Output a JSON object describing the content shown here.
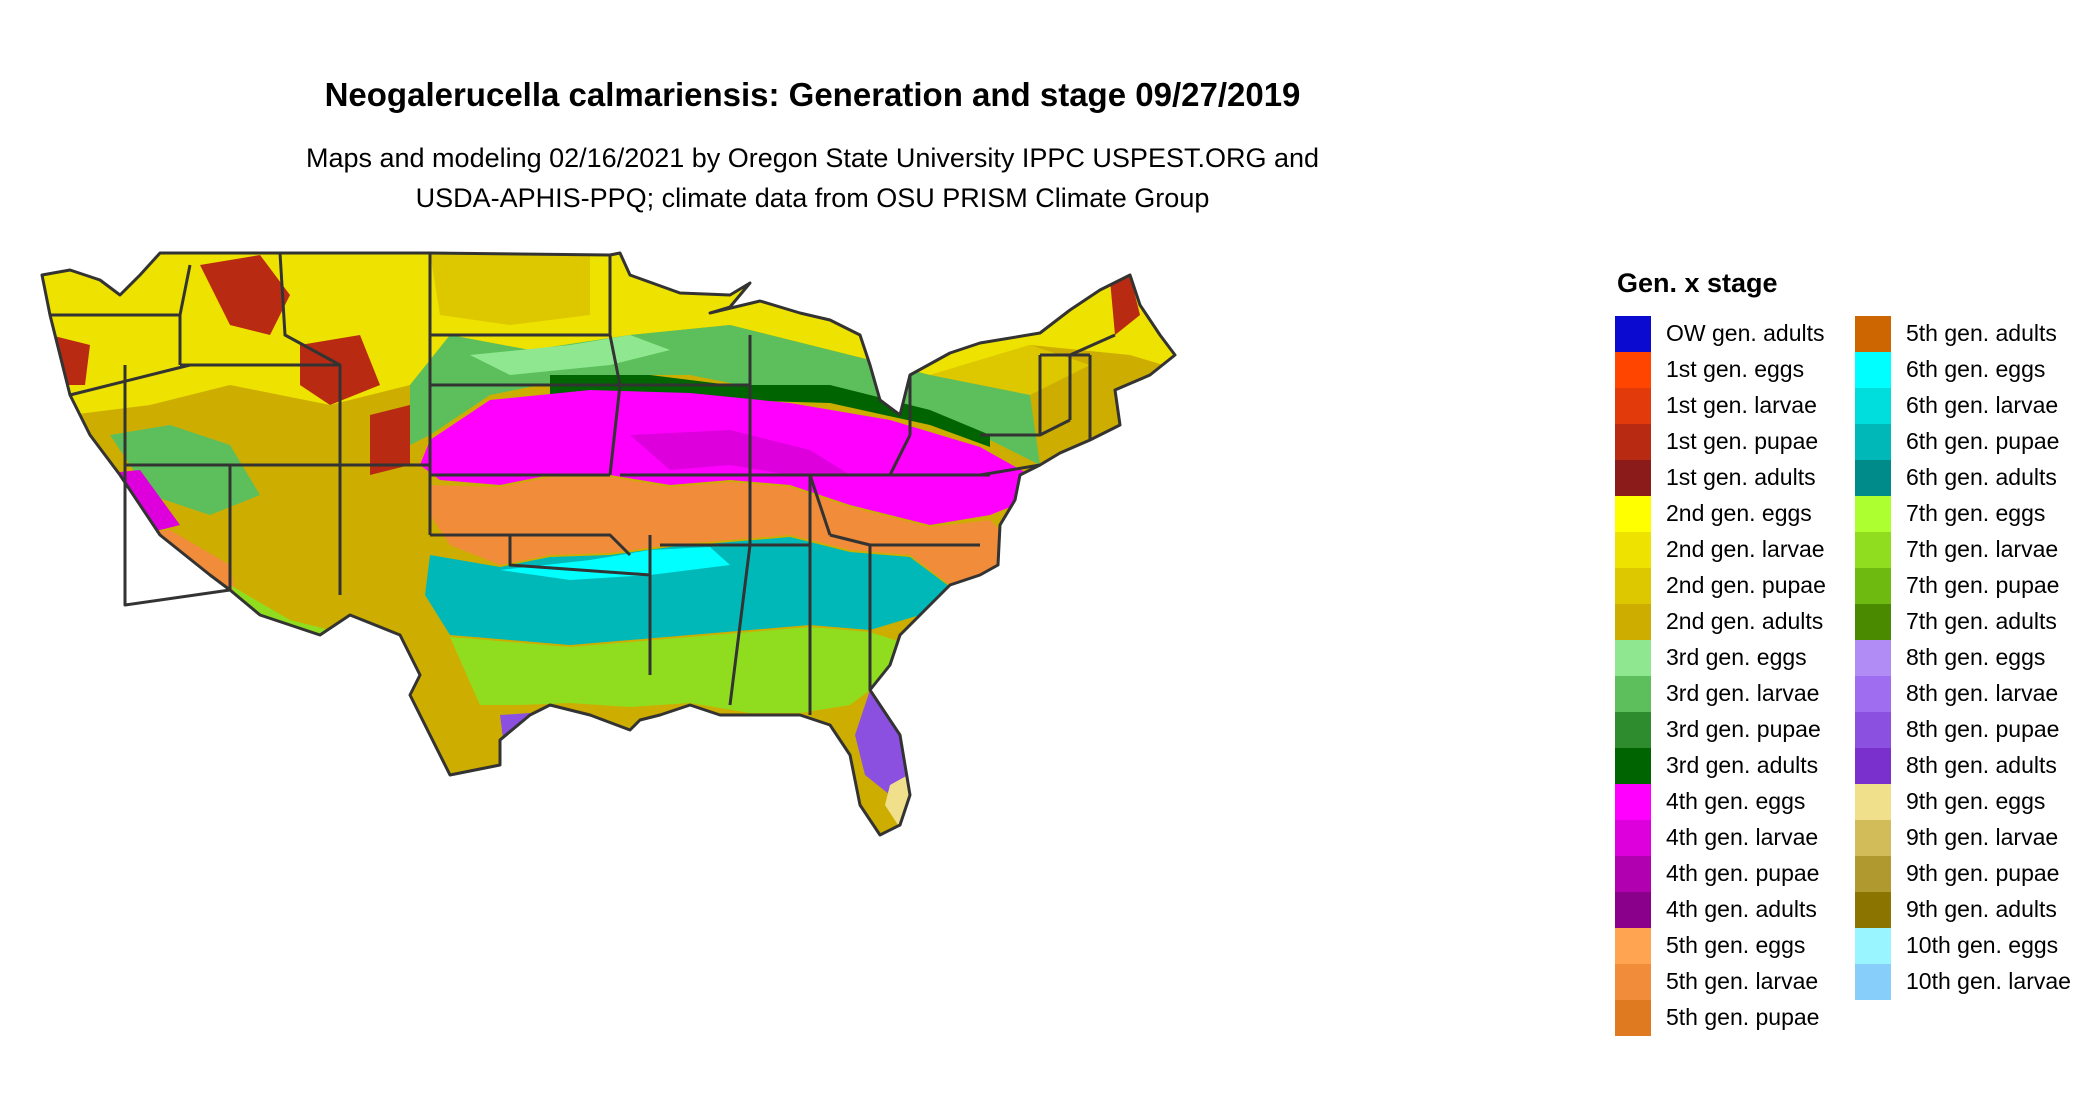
{
  "title": "Neogalerucella calmariensis: Generation and stage 09/27/2019",
  "subtitle_line1": "Maps and modeling 02/16/2021 by Oregon State University IPPC USPEST.ORG and",
  "subtitle_line2": "USDA-APHIS-PPQ; climate data from OSU PRISM Climate Group",
  "legend": {
    "title": "Gen. x stage",
    "items": [
      {
        "label": "OW gen. adults",
        "color": "#0a0ad0"
      },
      {
        "label": "1st gen. eggs",
        "color": "#ff4500"
      },
      {
        "label": "1st gen. larvae",
        "color": "#e23a0a"
      },
      {
        "label": "1st gen. pupae",
        "color": "#b82a12"
      },
      {
        "label": "1st gen. adults",
        "color": "#8b1a1a"
      },
      {
        "label": "2nd gen. eggs",
        "color": "#ffff00"
      },
      {
        "label": "2nd gen. larvae",
        "color": "#eee200"
      },
      {
        "label": "2nd gen. pupae",
        "color": "#ddc800"
      },
      {
        "label": "2nd gen. adults",
        "color": "#cdae00"
      },
      {
        "label": "3rd gen. eggs",
        "color": "#8fe88f"
      },
      {
        "label": "3rd gen. larvae",
        "color": "#5cbf5c"
      },
      {
        "label": "3rd gen. pupae",
        "color": "#2e8b2e"
      },
      {
        "label": "3rd gen. adults",
        "color": "#006400"
      },
      {
        "label": "4th gen. eggs",
        "color": "#ff00ff"
      },
      {
        "label": "4th gen. larvae",
        "color": "#dd00dd"
      },
      {
        "label": "4th gen. pupae",
        "color": "#b000b0"
      },
      {
        "label": "4th gen. adults",
        "color": "#8b008b"
      },
      {
        "label": "5th gen. eggs",
        "color": "#ffa552"
      },
      {
        "label": "5th gen. larvae",
        "color": "#f08c3a"
      },
      {
        "label": "5th gen. pupae",
        "color": "#e07a20"
      },
      {
        "label": "5th gen. adults",
        "color": "#cd6600"
      },
      {
        "label": "6th gen. eggs",
        "color": "#00ffff"
      },
      {
        "label": "6th gen. larvae",
        "color": "#00dddd"
      },
      {
        "label": "6th gen. pupae",
        "color": "#00b8b8"
      },
      {
        "label": "6th gen. adults",
        "color": "#008b8b"
      },
      {
        "label": "7th gen. eggs",
        "color": "#adff2f"
      },
      {
        "label": "7th gen. larvae",
        "color": "#90dd20"
      },
      {
        "label": "7th gen. pupae",
        "color": "#6fba10"
      },
      {
        "label": "7th gen. adults",
        "color": "#4a8a00"
      },
      {
        "label": "8th gen. eggs",
        "color": "#b28cf5"
      },
      {
        "label": "8th gen. larvae",
        "color": "#9f6ef0"
      },
      {
        "label": "8th gen. pupae",
        "color": "#8c50e0"
      },
      {
        "label": "8th gen. adults",
        "color": "#7a30cc"
      },
      {
        "label": "9th gen. eggs",
        "color": "#f0e08c"
      },
      {
        "label": "9th gen. larvae",
        "color": "#d2bc5a"
      },
      {
        "label": "9th gen. pupae",
        "color": "#b09a30"
      },
      {
        "label": "9th gen. adults",
        "color": "#8b7500"
      },
      {
        "label": "10th gen. eggs",
        "color": "#99f5ff"
      },
      {
        "label": "10th gen. larvae",
        "color": "#87cefa"
      }
    ]
  }
}
